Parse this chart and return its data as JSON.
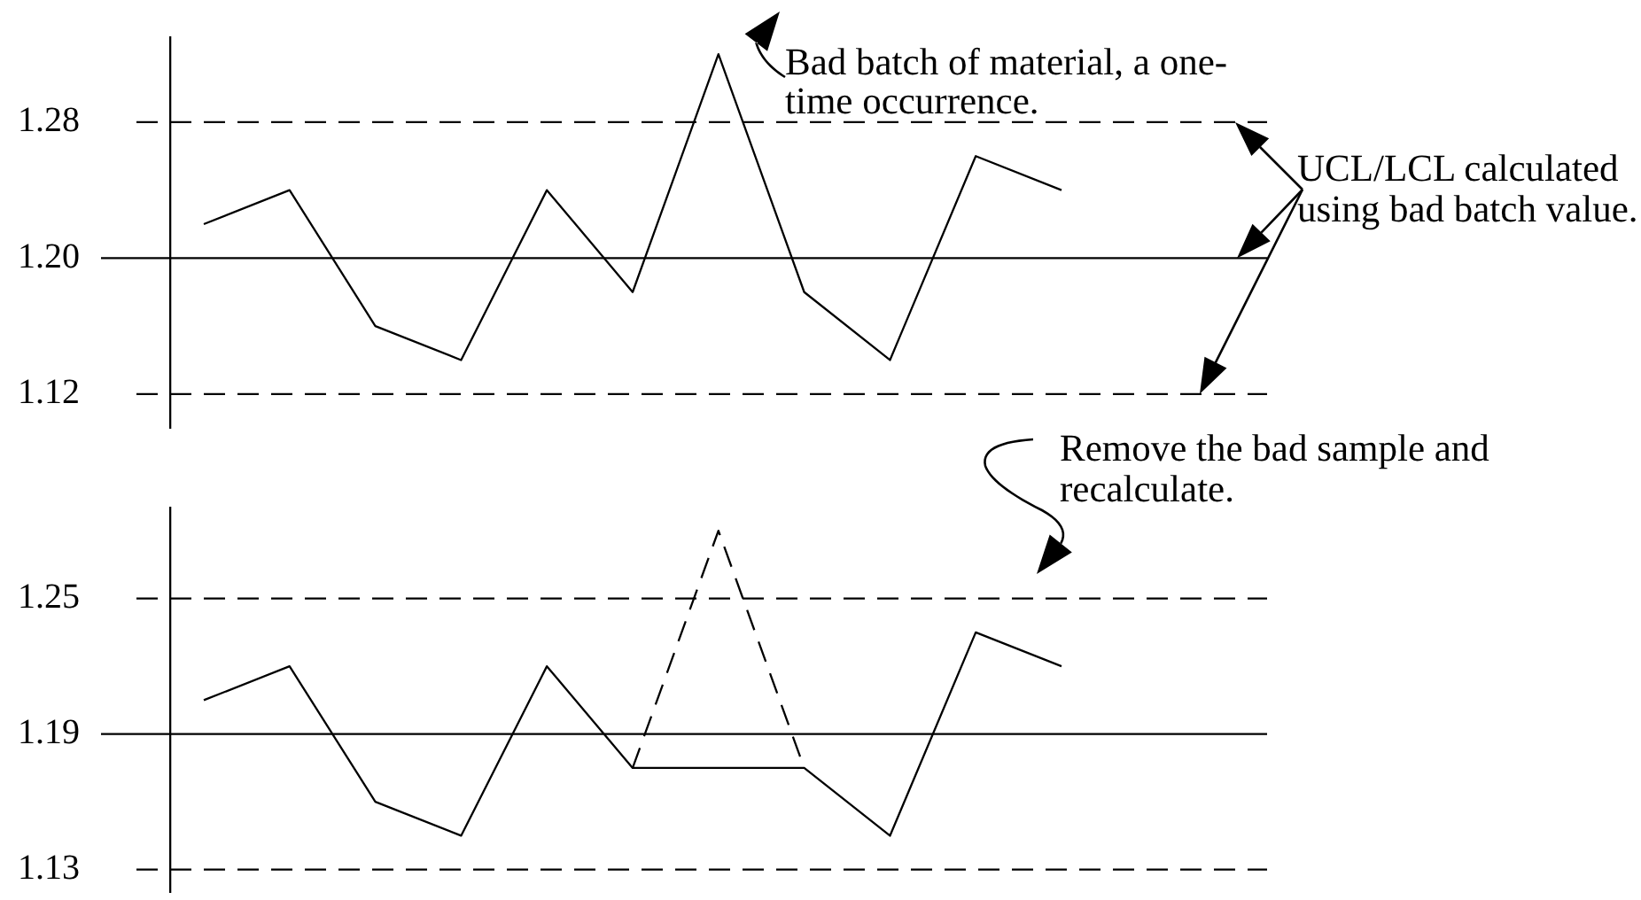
{
  "chart_data": [
    {
      "type": "line",
      "categories": [
        null,
        null,
        null,
        null,
        null,
        null,
        null,
        null,
        null,
        null,
        null
      ],
      "series": [
        {
          "color": "#000000",
          "values": [
            1.22,
            1.24,
            1.16,
            1.14,
            1.24,
            1.18,
            1.32,
            1.18,
            1.14,
            1.26,
            1.24
          ]
        }
      ],
      "ylim": [
        1.1,
        1.33
      ],
      "yticks": [
        1.12,
        {
          "value": 1.2,
          "label": "1.20"
        },
        1.28
      ],
      "ref_lines": [
        {
          "axis": "y",
          "value": 1.28,
          "color": "#000000",
          "line_style": "dashed"
        },
        {
          "axis": "y",
          "value": 1.2,
          "color": "#000000",
          "line_style": "solid"
        },
        {
          "axis": "y",
          "value": 1.12,
          "color": "#000000",
          "line_style": "dashed"
        }
      ],
      "marker": "none",
      "tick_labels": "y",
      "annotations": [
        "Bad batch of material, a one-time occurrence.",
        "UCL/LCL calculated using bad batch value."
      ]
    },
    {
      "type": "line",
      "categories": [
        null,
        null,
        null,
        null,
        null,
        null,
        null,
        null,
        null,
        null,
        null
      ],
      "series": [
        {
          "color": "#000000",
          "values": [
            1.205,
            1.22,
            1.16,
            1.145,
            1.22,
            1.175,
            1.175,
            1.175,
            1.145,
            1.235,
            1.22
          ]
        },
        {
          "color": "#000000",
          "line_style": "dashed",
          "values": [
            null,
            null,
            null,
            null,
            null,
            1.175,
            1.28,
            1.175,
            null,
            null,
            null
          ]
        }
      ],
      "ylim": [
        1.12,
        1.29
      ],
      "yticks": [
        1.13,
        1.19,
        1.25
      ],
      "ref_lines": [
        {
          "axis": "y",
          "value": 1.25,
          "color": "#000000",
          "line_style": "dashed"
        },
        {
          "axis": "y",
          "value": 1.19,
          "color": "#000000",
          "line_style": "solid"
        },
        {
          "axis": "y",
          "value": 1.13,
          "color": "#000000",
          "line_style": "dashed"
        }
      ],
      "marker": "none",
      "tick_labels": "y",
      "annotations": [
        "Remove the bad sample and recalculate."
      ]
    }
  ]
}
